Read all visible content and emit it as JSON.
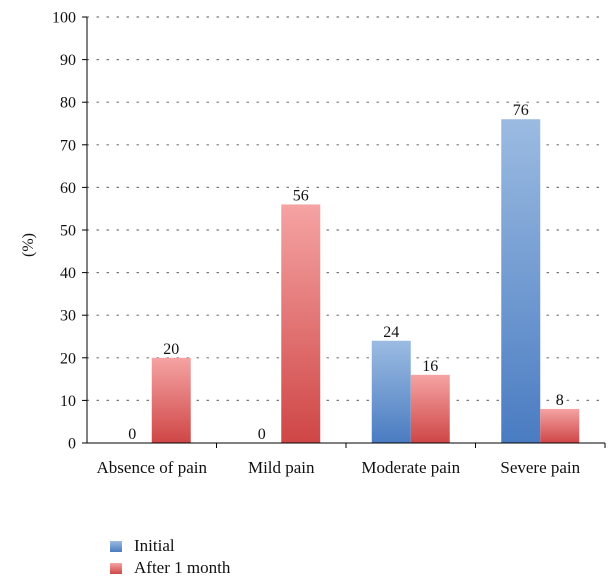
{
  "chart_data": {
    "type": "bar",
    "categories": [
      "Absence of pain",
      "Mild pain",
      "Moderate pain",
      "Severe pain"
    ],
    "series": [
      {
        "name": "Initial",
        "values": [
          0,
          0,
          24,
          76
        ],
        "color_top": "#9bbbe1",
        "color_bottom": "#4a7cc2"
      },
      {
        "name": "After 1 month",
        "values": [
          20,
          56,
          16,
          8
        ],
        "color_top": "#f5a3a3",
        "color_bottom": "#cf4646"
      }
    ],
    "ylabel": "(%)",
    "ylim": [
      0,
      100
    ],
    "yticks": [
      0,
      10,
      20,
      30,
      40,
      50,
      60,
      70,
      80,
      90,
      100
    ],
    "grid": "dotted-horizontal",
    "legend_position": "bottom-left"
  }
}
